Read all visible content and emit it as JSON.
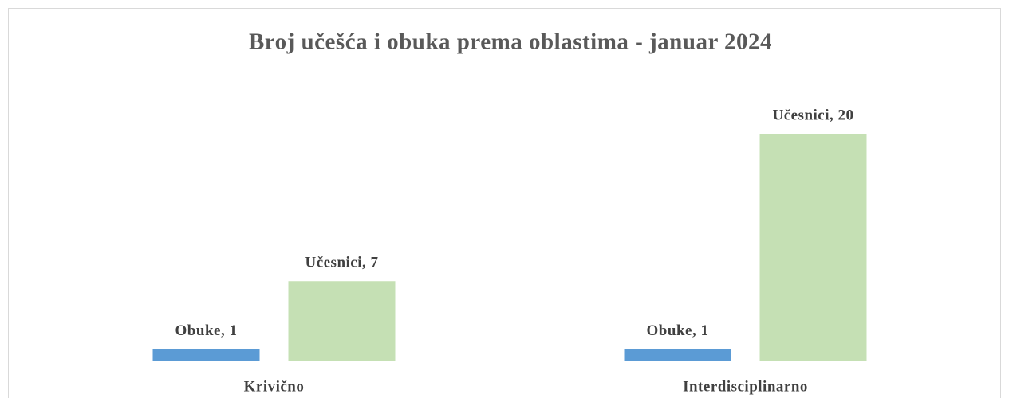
{
  "chart_data": {
    "type": "bar",
    "title": "Broj učešća i obuka prema oblastima - januar 2024",
    "categories": [
      "Krivično",
      "Interdisciplinarno"
    ],
    "series": [
      {
        "name": "Obuke",
        "color": "#5b9bd5",
        "values": [
          1,
          1
        ],
        "value_labels": [
          "Obuke, 1",
          "Obuke, 1"
        ]
      },
      {
        "name": "Učesnici",
        "color": "#c5e0b4",
        "values": [
          7,
          20
        ],
        "value_labels": [
          "Učesnici, 7",
          "Učesnici, 20"
        ]
      }
    ]
  }
}
